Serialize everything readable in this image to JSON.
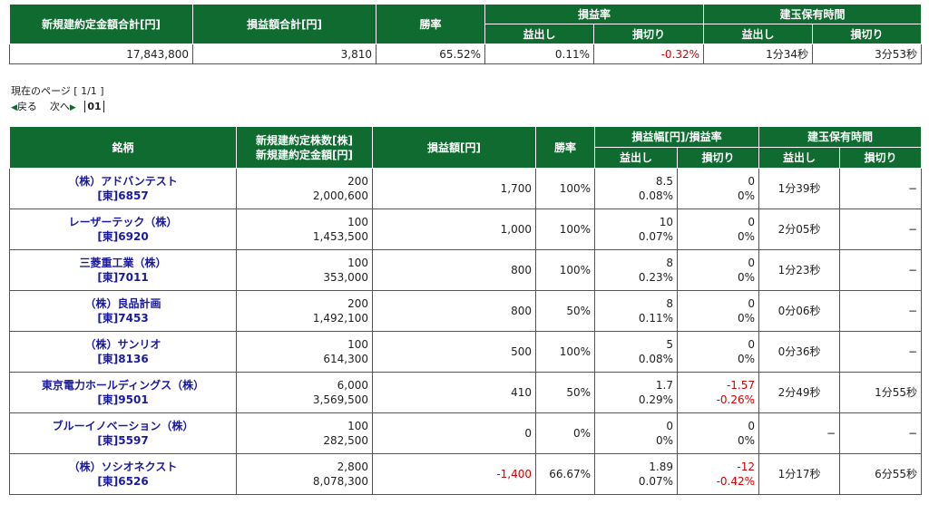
{
  "summary": {
    "headers": {
      "total_amount": "新規建約定金額合計[円]",
      "total_pnl": "損益額合計[円]",
      "win_rate": "勝率",
      "pnl_rate": "損益率",
      "holding_time": "建玉保有時間",
      "profit": "益出し",
      "loss": "損切り"
    },
    "values": {
      "total_amount": "17,843,800",
      "total_pnl": "3,810",
      "win_rate": "65.52%",
      "pnl_rate_profit": "0.11%",
      "pnl_rate_loss": "-0.32%",
      "hold_profit": "1分34秒",
      "hold_loss": "3分53秒"
    }
  },
  "pager": {
    "current": "現在のページ [ 1/1 ]",
    "prev": "戻る",
    "next": "次へ",
    "page": "01"
  },
  "detail": {
    "headers": {
      "symbol": "銘柄",
      "qty": "新規建約定株数[株]",
      "amount": "新規建約定金額[円]",
      "pnl": "損益額[円]",
      "win_rate": "勝率",
      "pnl_range": "損益幅[円]/損益率",
      "holding_time": "建玉保有時間",
      "profit": "益出し",
      "loss": "損切り"
    },
    "rows": [
      {
        "name": "（株）アドバンテスト",
        "code": "[東]6857",
        "qty": "200",
        "amount": "2,000,600",
        "pnl": "1,700",
        "win": "100%",
        "p_range": "8.5",
        "p_rate": "0.08%",
        "l_range": "0",
        "l_rate": "0%",
        "h_profit": "1分39秒",
        "h_loss": "−"
      },
      {
        "name": "レーザーテック（株）",
        "code": "[東]6920",
        "qty": "100",
        "amount": "1,453,500",
        "pnl": "1,000",
        "win": "100%",
        "p_range": "10",
        "p_rate": "0.07%",
        "l_range": "0",
        "l_rate": "0%",
        "h_profit": "2分05秒",
        "h_loss": "−"
      },
      {
        "name": "三菱重工業（株）",
        "code": "[東]7011",
        "qty": "100",
        "amount": "353,000",
        "pnl": "800",
        "win": "100%",
        "p_range": "8",
        "p_rate": "0.23%",
        "l_range": "0",
        "l_rate": "0%",
        "h_profit": "1分23秒",
        "h_loss": "−"
      },
      {
        "name": "（株）良品計画",
        "code": "[東]7453",
        "qty": "200",
        "amount": "1,492,100",
        "pnl": "800",
        "win": "50%",
        "p_range": "8",
        "p_rate": "0.11%",
        "l_range": "0",
        "l_rate": "0%",
        "h_profit": "0分06秒",
        "h_loss": "−"
      },
      {
        "name": "（株）サンリオ",
        "code": "[東]8136",
        "qty": "100",
        "amount": "614,300",
        "pnl": "500",
        "win": "100%",
        "p_range": "5",
        "p_rate": "0.08%",
        "l_range": "0",
        "l_rate": "0%",
        "h_profit": "0分36秒",
        "h_loss": "−"
      },
      {
        "name": "東京電力ホールディングス（株）",
        "code": "[東]9501",
        "qty": "6,000",
        "amount": "3,569,500",
        "pnl": "410",
        "win": "50%",
        "p_range": "1.7",
        "p_rate": "0.29%",
        "l_range": "-1.57",
        "l_rate": "-0.26%",
        "h_profit": "2分49秒",
        "h_loss": "1分55秒"
      },
      {
        "name": "ブルーイノベーション（株）",
        "code": "[東]5597",
        "qty": "100",
        "amount": "282,500",
        "pnl": "0",
        "win": "0%",
        "p_range": "0",
        "p_rate": "0%",
        "l_range": "0",
        "l_rate": "0%",
        "h_profit": "−",
        "h_loss": "−"
      },
      {
        "name": "（株）ソシオネクスト",
        "code": "[東]6526",
        "qty": "2,800",
        "amount": "8,078,300",
        "pnl": "-1,400",
        "win": "66.67%",
        "p_range": "1.89",
        "p_rate": "0.07%",
        "l_range": "-12",
        "l_rate": "-0.42%",
        "h_profit": "1分17秒",
        "h_loss": "6分55秒"
      }
    ]
  },
  "colors": {
    "header_bg": "#0f6b2f",
    "link": "#1a1aa0",
    "negative": "#d40000"
  },
  "icons": {
    "prev": "triangle-left-icon",
    "next": "triangle-right-icon"
  }
}
